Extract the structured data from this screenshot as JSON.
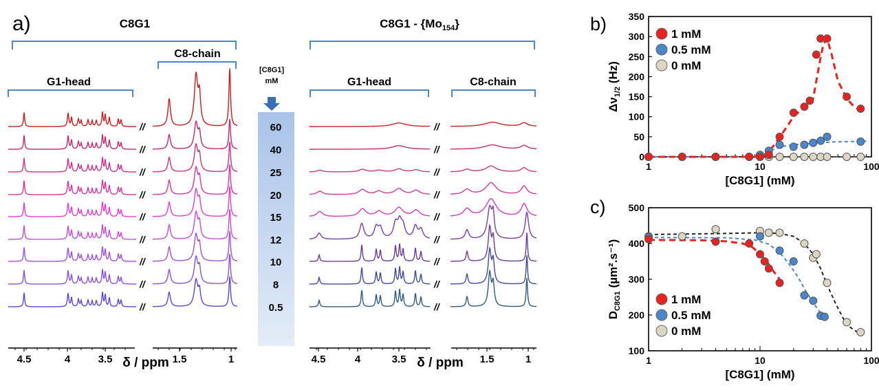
{
  "panel_a": {
    "label": "a)",
    "left_title": "C8G1",
    "right_title": "C8G1 - {Mo",
    "right_title_sub": "154",
    "right_title_end": "}",
    "g1_head": "G1-head",
    "c8_chain": "C8-chain",
    "break_mark": "//",
    "conc_header_line1": "[C8G1]",
    "conc_header_line2": "mM",
    "concentrations": [
      "60",
      "40",
      "25",
      "20",
      "15",
      "12",
      "10",
      "8",
      "0.5"
    ],
    "trace_colors": [
      "#cc1a1a",
      "#c4266e",
      "#cc2f8a",
      "#d633a0",
      "#e53bd0",
      "#c44bd6",
      "#a14fd8",
      "#8a4fe0",
      "#5a45d6"
    ],
    "right_trace_colors": [
      "#cc2020",
      "#c62a62",
      "#cc3580",
      "#cc3aa0",
      "#d13ac4",
      "#7a3ca8",
      "#6a3a9c",
      "#3f4a9a",
      "#2d5a80"
    ],
    "xaxis_left": {
      "ticks": [
        "4.5",
        "4",
        "3.5"
      ],
      "ticks_chain": [
        "1.5",
        "1"
      ],
      "label": "δ / ppm"
    },
    "xaxis_right": {
      "ticks": [
        "4.5",
        "4",
        "3.5"
      ],
      "ticks_chain": [
        "1.5",
        "1"
      ],
      "label": "δ / ppm"
    }
  },
  "chart_data": [
    {
      "type": "scatter",
      "panel_label": "b)",
      "ylabel": "Δν",
      "ylabel_sub": "1/2",
      "ylabel_unit": " (Hz)",
      "xlabel": "[C8G1] (mM)",
      "xscale": "log",
      "xlim": [
        1,
        100
      ],
      "ylim": [
        0,
        350
      ],
      "xticks": [
        1,
        10,
        100
      ],
      "yticks": [
        0,
        50,
        100,
        150,
        200,
        250,
        300,
        350
      ],
      "legend_position": "top-left",
      "series": [
        {
          "name": "1 mM",
          "color": "#e8221e",
          "x": [
            1,
            2,
            4,
            8,
            10,
            12,
            15,
            20,
            25,
            28,
            32,
            35,
            40,
            60,
            80
          ],
          "y": [
            0,
            0,
            0,
            0,
            0,
            5,
            50,
            110,
            125,
            140,
            255,
            295,
            295,
            150,
            120
          ],
          "fit_x": [
            1,
            9,
            11,
            13,
            16,
            20,
            25,
            30,
            34,
            37,
            40,
            44,
            50,
            60,
            70,
            80
          ],
          "fit_y": [
            0,
            0,
            5,
            25,
            60,
            100,
            125,
            145,
            230,
            280,
            295,
            255,
            190,
            145,
            125,
            115
          ]
        },
        {
          "name": "0.5 mM",
          "color": "#4a86cc",
          "x": [
            1,
            2,
            4,
            8,
            10,
            12,
            15,
            20,
            25,
            30,
            35,
            40,
            80
          ],
          "y": [
            0,
            0,
            0,
            0,
            5,
            15,
            30,
            25,
            30,
            35,
            40,
            50,
            38
          ],
          "fit_x": [
            1,
            9,
            11,
            13,
            16,
            20,
            30,
            45,
            60,
            90
          ],
          "fit_y": [
            0,
            0,
            8,
            18,
            26,
            30,
            34,
            37,
            38,
            39
          ]
        },
        {
          "name": "0 mM",
          "color": "#dcd6c2",
          "x": [
            1,
            2,
            4,
            8,
            10,
            12,
            15,
            20,
            25,
            30,
            35,
            40,
            60,
            80
          ],
          "y": [
            0,
            0,
            0,
            0,
            0,
            0,
            0,
            0,
            0,
            0,
            0,
            0,
            0,
            0
          ],
          "fit_x": [
            1,
            90
          ],
          "fit_y": [
            0,
            0
          ]
        }
      ]
    },
    {
      "type": "scatter",
      "panel_label": "c)",
      "ylabel": "D",
      "ylabel_sub": "C8G1",
      "ylabel_unit": " (µm².s⁻¹)",
      "xlabel": "[C8G1] (mM)",
      "xscale": "log",
      "xlim": [
        1,
        100
      ],
      "ylim": [
        100,
        500
      ],
      "xticks": [
        1,
        10,
        100
      ],
      "yticks": [
        100,
        200,
        300,
        400,
        500
      ],
      "legend_position": "bottom-left",
      "series": [
        {
          "name": "1 mM",
          "color": "#e8221e",
          "x": [
            1,
            4,
            8,
            10,
            11,
            12,
            15
          ],
          "y": [
            412,
            405,
            400,
            370,
            350,
            330,
            290
          ],
          "fit_x": [
            1,
            3,
            5,
            7,
            8.5,
            10,
            11.5,
            13,
            15
          ],
          "fit_y": [
            410,
            409,
            406,
            400,
            390,
            372,
            350,
            325,
            300
          ]
        },
        {
          "name": "0.5 mM",
          "color": "#4a86cc",
          "x": [
            1,
            10,
            15,
            20,
            25,
            30,
            35,
            38
          ],
          "y": [
            418,
            420,
            380,
            350,
            255,
            240,
            198,
            195
          ],
          "fit_x": [
            1,
            5,
            9,
            12,
            15,
            18,
            22,
            26,
            30,
            35,
            40
          ],
          "fit_y": [
            417,
            416,
            410,
            398,
            375,
            345,
            305,
            265,
            235,
            205,
            190
          ]
        },
        {
          "name": "0 mM",
          "color": "#dcd6c2",
          "x": [
            1,
            2,
            4,
            10,
            12,
            15,
            25,
            30,
            32,
            40,
            60,
            80
          ],
          "y": [
            420,
            420,
            440,
            435,
            430,
            430,
            400,
            360,
            370,
            290,
            180,
            152
          ],
          "fit_x": [
            1,
            5,
            10,
            15,
            20,
            25,
            30,
            35,
            40,
            48,
            56,
            65,
            75,
            80
          ],
          "fit_y": [
            425,
            428,
            430,
            428,
            420,
            400,
            370,
            330,
            285,
            230,
            190,
            165,
            152,
            150
          ]
        }
      ]
    }
  ]
}
